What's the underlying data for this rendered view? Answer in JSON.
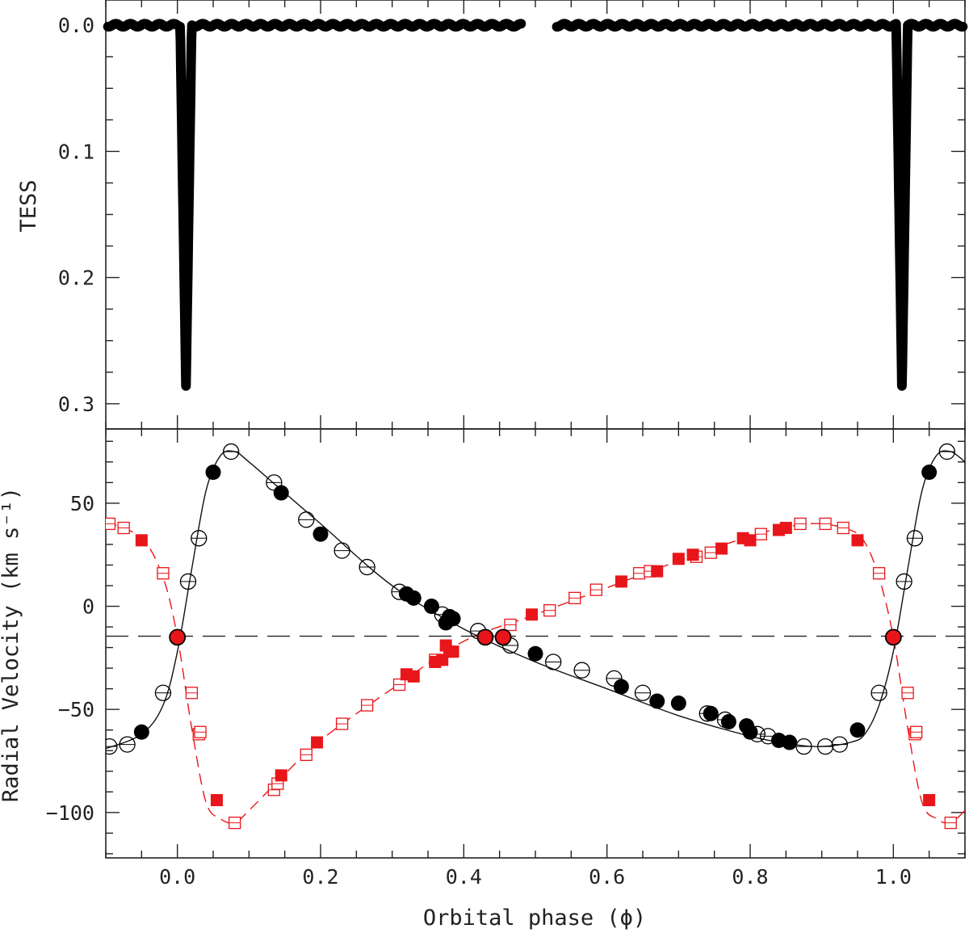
{
  "chart_data": [
    {
      "panel": "top",
      "type": "scatter",
      "ylabel": "TESS",
      "xlim": [
        -0.1,
        1.1
      ],
      "ylim": [
        0.32,
        -0.02
      ],
      "y_inverted": true,
      "yticks": [
        0.0,
        0.1,
        0.2,
        0.3
      ],
      "ytick_labels": [
        "0.0",
        "0.1",
        "0.2",
        "0.3"
      ],
      "marker": "filled black circles (dense light curve)",
      "baseline": 0.0,
      "gap": [
        0.48,
        0.53
      ],
      "eclipses": [
        {
          "phase_center": 0.012,
          "depth": 0.287,
          "half_width": 0.008
        },
        {
          "phase_center": 1.012,
          "depth": 0.287,
          "half_width": 0.008
        }
      ]
    },
    {
      "panel": "bottom",
      "type": "scatter",
      "xlabel": "Orbital phase (ϕ)",
      "ylabel": "Radial Velocity (km s⁻¹)",
      "xlim": [
        -0.1,
        1.1
      ],
      "ylim": [
        -122,
        86
      ],
      "xticks": [
        0.0,
        0.2,
        0.4,
        0.6,
        0.8,
        1.0
      ],
      "xtick_labels": [
        "0.0",
        "0.2",
        "0.4",
        "0.6",
        "0.8",
        "1.0"
      ],
      "yticks": [
        -100,
        -50,
        0,
        50
      ],
      "ytick_labels": [
        "−100",
        "−50",
        "0",
        "50"
      ],
      "systemic_velocity": -14.5,
      "fit_primary": {
        "style": "solid black line",
        "phase": [
          -0.1,
          -0.05,
          -0.02,
          0.0,
          0.02,
          0.04,
          0.06,
          0.08,
          0.1,
          0.14,
          0.2,
          0.3,
          0.4,
          0.5,
          0.6,
          0.7,
          0.8,
          0.86,
          0.9,
          0.94,
          0.96,
          0.98,
          1.0,
          1.02,
          1.04,
          1.06,
          1.08,
          1.1
        ],
        "rv": [
          -69,
          -62,
          -48,
          -22,
          18,
          56,
          73,
          75,
          70,
          58,
          40,
          10,
          -11,
          -27,
          -40,
          -53,
          -63,
          -67,
          -68,
          -66,
          -62,
          -48,
          -22,
          18,
          56,
          73,
          75,
          70
        ]
      },
      "fit_secondary": {
        "style": "dashed red line",
        "phase": [
          -0.1,
          -0.05,
          -0.02,
          0.0,
          0.02,
          0.04,
          0.06,
          0.08,
          0.1,
          0.14,
          0.2,
          0.3,
          0.4,
          0.5,
          0.6,
          0.7,
          0.8,
          0.86,
          0.9,
          0.94,
          0.96,
          0.98,
          1.0,
          1.02,
          1.04,
          1.06,
          1.08,
          1.1
        ],
        "rv": [
          41,
          33,
          14,
          -15,
          -59,
          -95,
          -103,
          -105,
          -99,
          -85,
          -65,
          -40,
          -17,
          -4,
          9,
          22,
          34,
          39,
          40,
          37,
          31,
          14,
          -15,
          -59,
          -95,
          -103,
          -105,
          -99
        ]
      },
      "series": [
        {
          "component": "primary, open",
          "color": "#000000",
          "marker": "open circle",
          "points": [
            [
              -0.095,
              -68
            ],
            [
              -0.07,
              -67
            ],
            [
              -0.02,
              -42
            ],
            [
              0.015,
              12
            ],
            [
              0.03,
              33
            ],
            [
              0.075,
              75
            ],
            [
              0.135,
              60
            ],
            [
              0.18,
              42
            ],
            [
              0.23,
              27
            ],
            [
              0.265,
              19
            ],
            [
              0.31,
              7
            ],
            [
              0.37,
              -4
            ],
            [
              0.42,
              -12
            ],
            [
              0.465,
              -19
            ],
            [
              0.525,
              -27
            ],
            [
              0.565,
              -31
            ],
            [
              0.61,
              -35
            ],
            [
              0.65,
              -42
            ],
            [
              0.74,
              -52
            ],
            [
              0.765,
              -55
            ],
            [
              0.81,
              -62
            ],
            [
              0.825,
              -63
            ],
            [
              0.875,
              -68
            ],
            [
              0.905,
              -68
            ],
            [
              0.925,
              -67
            ],
            [
              0.98,
              -42
            ],
            [
              1.015,
              12
            ],
            [
              1.03,
              33
            ],
            [
              1.075,
              75
            ]
          ]
        },
        {
          "component": "primary, filled",
          "color": "#000000",
          "marker": "filled circle",
          "points": [
            [
              -0.05,
              -61
            ],
            [
              0.05,
              65
            ],
            [
              0.145,
              55
            ],
            [
              0.2,
              35
            ],
            [
              0.32,
              6
            ],
            [
              0.33,
              4
            ],
            [
              0.355,
              0
            ],
            [
              0.375,
              -8
            ],
            [
              0.38,
              -5
            ],
            [
              0.385,
              -6
            ],
            [
              0.5,
              -23
            ],
            [
              0.62,
              -39
            ],
            [
              0.67,
              -46
            ],
            [
              0.7,
              -47
            ],
            [
              0.745,
              -52
            ],
            [
              0.77,
              -56
            ],
            [
              0.795,
              -58
            ],
            [
              0.8,
              -61
            ],
            [
              0.84,
              -65
            ],
            [
              0.855,
              -66
            ],
            [
              0.95,
              -60
            ],
            [
              1.05,
              65
            ]
          ]
        },
        {
          "component": "secondary, open",
          "color": "#e8161a",
          "marker": "open square",
          "points": [
            [
              -0.095,
              40
            ],
            [
              -0.075,
              38
            ],
            [
              -0.02,
              16
            ],
            [
              0.02,
              -42
            ],
            [
              0.03,
              -62
            ],
            [
              0.032,
              -61
            ],
            [
              0.08,
              -105
            ],
            [
              0.135,
              -89
            ],
            [
              0.14,
              -86
            ],
            [
              0.18,
              -72
            ],
            [
              0.23,
              -57
            ],
            [
              0.265,
              -48
            ],
            [
              0.31,
              -38
            ],
            [
              0.36,
              -26
            ],
            [
              0.465,
              -9
            ],
            [
              0.52,
              -2
            ],
            [
              0.555,
              4
            ],
            [
              0.585,
              8
            ],
            [
              0.645,
              16
            ],
            [
              0.66,
              17
            ],
            [
              0.725,
              24
            ],
            [
              0.745,
              26
            ],
            [
              0.815,
              35
            ],
            [
              0.87,
              40
            ],
            [
              0.905,
              40
            ],
            [
              0.93,
              38
            ],
            [
              0.98,
              16
            ],
            [
              1.02,
              -42
            ],
            [
              1.03,
              -62
            ],
            [
              1.032,
              -61
            ],
            [
              1.08,
              -105
            ]
          ]
        },
        {
          "component": "secondary, filled",
          "color": "#e8161a",
          "marker": "filled square",
          "points": [
            [
              -0.05,
              32
            ],
            [
              0.055,
              -94
            ],
            [
              0.145,
              -82
            ],
            [
              0.195,
              -66
            ],
            [
              0.32,
              -33
            ],
            [
              0.33,
              -34
            ],
            [
              0.36,
              -27
            ],
            [
              0.37,
              -26
            ],
            [
              0.375,
              -19
            ],
            [
              0.38,
              -22
            ],
            [
              0.385,
              -22
            ],
            [
              0.495,
              -4
            ],
            [
              0.62,
              12
            ],
            [
              0.67,
              17
            ],
            [
              0.7,
              23
            ],
            [
              0.72,
              25
            ],
            [
              0.76,
              28
            ],
            [
              0.79,
              33
            ],
            [
              0.8,
              32
            ],
            [
              0.84,
              37
            ],
            [
              0.85,
              38
            ],
            [
              0.95,
              32
            ],
            [
              1.05,
              -94
            ]
          ]
        },
        {
          "component": "eclipse phases",
          "color": "#e8161a",
          "marker": "red-filled circle with black outline",
          "points": [
            [
              0.0,
              -15
            ],
            [
              0.43,
              -15
            ],
            [
              0.455,
              -15
            ],
            [
              1.0,
              -15
            ]
          ]
        }
      ]
    }
  ]
}
